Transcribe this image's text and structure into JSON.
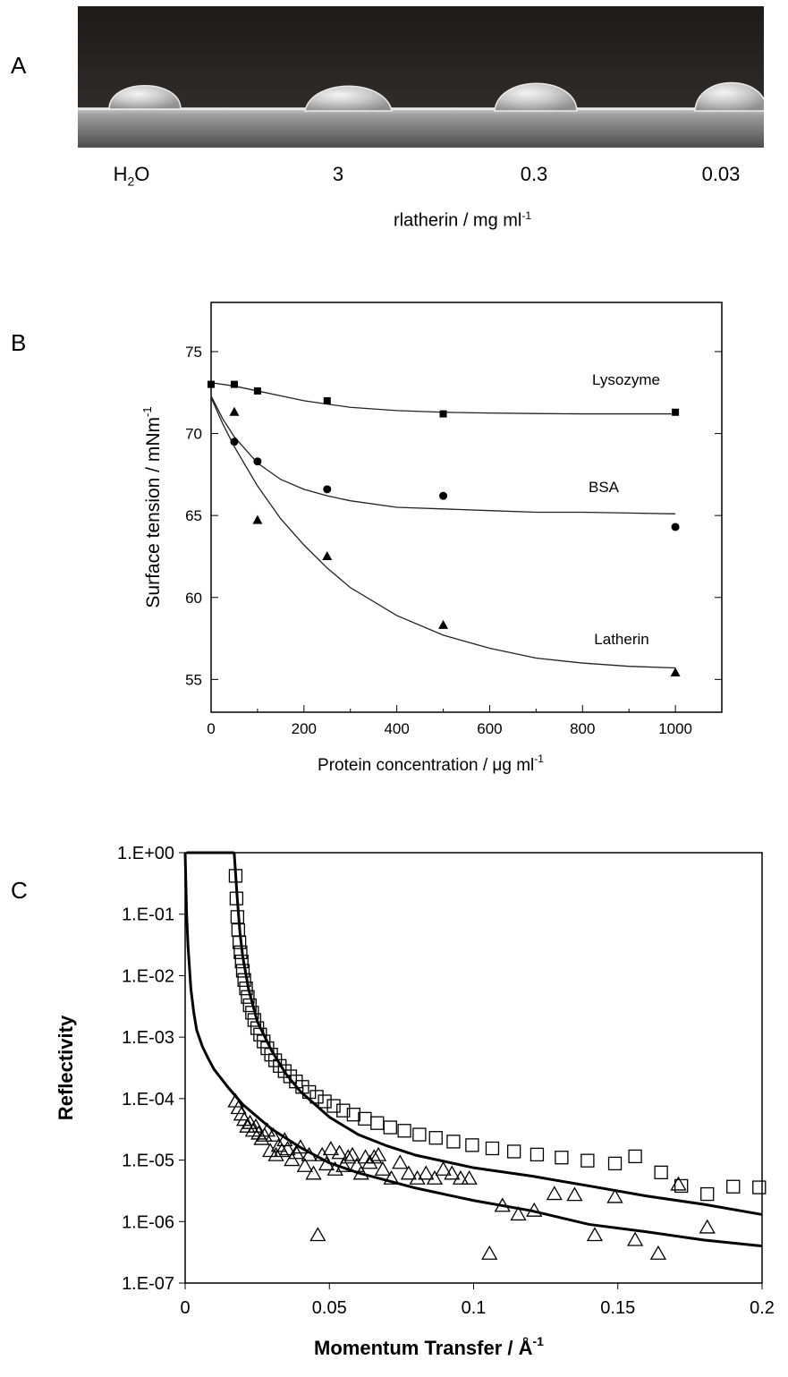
{
  "panel_a": {
    "letter": "A",
    "drops": [
      {
        "label_main": "H",
        "label_sub": "2",
        "label_tail": "O"
      },
      {
        "label_main": "3",
        "label_sub": "",
        "label_tail": ""
      },
      {
        "label_main": "0.3",
        "label_sub": "",
        "label_tail": ""
      },
      {
        "label_main": "0.03",
        "label_sub": "",
        "label_tail": ""
      }
    ],
    "axis_label": "rlatherin   /  mg ml",
    "axis_label_sup": "-1"
  },
  "panel_b": {
    "letter": "B",
    "ylabel": "Surface tension /  mNm",
    "ylabel_sup": "-1",
    "xlabel": "Protein concentration  / μg ml",
    "xlabel_sup": "-1"
  },
  "panel_c": {
    "letter": "C",
    "ylabel": "Reflectivity",
    "xlabel": "Momentum Transfer / Å",
    "xlabel_sup": "-1"
  },
  "chart_data": [
    {
      "type": "scatter",
      "title": "",
      "xlabel": "Protein concentration / μg ml-1",
      "ylabel": "Surface tension / mNm-1",
      "xlim": [
        0,
        1100
      ],
      "ylim": [
        53,
        78
      ],
      "xticks": [
        "0",
        "200",
        "400",
        "600",
        "800",
        "1000"
      ],
      "yticks": [
        "55",
        "60",
        "65",
        "70",
        "75"
      ],
      "series": [
        {
          "name": "Lysozyme",
          "marker": "square",
          "x": [
            0,
            50,
            100,
            250,
            500,
            1000
          ],
          "y": [
            73.0,
            73.0,
            72.6,
            72.0,
            71.2,
            71.3
          ],
          "fit_x": [
            0,
            50,
            100,
            150,
            200,
            250,
            300,
            400,
            500,
            600,
            700,
            800,
            900,
            1000
          ],
          "fit_y": [
            73.1,
            72.9,
            72.6,
            72.3,
            72.0,
            71.8,
            71.6,
            71.4,
            71.3,
            71.25,
            71.22,
            71.2,
            71.2,
            71.2
          ]
        },
        {
          "name": "BSA",
          "marker": "circle",
          "x": [
            50,
            100,
            250,
            500,
            1000
          ],
          "y": [
            69.5,
            68.3,
            66.6,
            66.2,
            64.3
          ],
          "fit_x": [
            0,
            25,
            50,
            100,
            150,
            200,
            250,
            300,
            400,
            500,
            600,
            700,
            800,
            900,
            1000
          ],
          "fit_y": [
            72.3,
            70.9,
            69.8,
            68.2,
            67.2,
            66.6,
            66.2,
            65.9,
            65.5,
            65.4,
            65.3,
            65.2,
            65.2,
            65.15,
            65.1
          ]
        },
        {
          "name": "Latherin",
          "marker": "triangle",
          "x": [
            50,
            100,
            250,
            500,
            1000
          ],
          "y": [
            71.3,
            64.7,
            62.5,
            58.3,
            55.4
          ],
          "fit_x": [
            0,
            25,
            50,
            100,
            150,
            200,
            250,
            300,
            400,
            500,
            600,
            700,
            800,
            900,
            1000
          ],
          "fit_y": [
            72.2,
            70.6,
            69.2,
            66.8,
            64.8,
            63.2,
            61.8,
            60.6,
            58.9,
            57.7,
            56.9,
            56.3,
            56.0,
            55.8,
            55.7
          ]
        }
      ],
      "annotations": [
        "Lysozyme",
        "BSA",
        "Latherin"
      ]
    },
    {
      "type": "scatter",
      "title": "",
      "xlabel": "Momentum Transfer / Å-1",
      "ylabel": "Reflectivity",
      "xlim": [
        0,
        0.2
      ],
      "ylim": [
        1e-07,
        1
      ],
      "yscale": "log",
      "xticks": [
        "0",
        "0.05",
        "0.1",
        "0.15",
        "0.2"
      ],
      "yticks": [
        "1.E+00",
        "1.E-01",
        "1.E-02",
        "1.E-03",
        "1.E-04",
        "1.E-05",
        "1.E-06",
        "1.E-07"
      ],
      "series": [
        {
          "marker": "open-square",
          "x": [
            0.0175,
            0.0178,
            0.0181,
            0.0184,
            0.0188,
            0.0192,
            0.0196,
            0.02,
            0.0205,
            0.0211,
            0.0217,
            0.0224,
            0.0232,
            0.024,
            0.025,
            0.026,
            0.0272,
            0.0285,
            0.0298,
            0.0312,
            0.0328,
            0.0345,
            0.0364,
            0.0384,
            0.0406,
            0.043,
            0.0456,
            0.0484,
            0.0515,
            0.0548,
            0.0584,
            0.0623,
            0.0666,
            0.0711,
            0.076,
            0.0812,
            0.0869,
            0.093,
            0.0995,
            0.1065,
            0.114,
            0.122,
            0.1305,
            0.1395,
            0.149,
            0.156,
            0.165,
            0.172,
            0.181,
            0.19,
            0.199
          ],
          "y": [
            0.42,
            0.18,
            0.09,
            0.055,
            0.035,
            0.024,
            0.017,
            0.012,
            0.0085,
            0.0062,
            0.0045,
            0.0033,
            0.0025,
            0.0019,
            0.0014,
            0.0011,
            0.00085,
            0.00066,
            0.00052,
            0.00042,
            0.00034,
            0.00028,
            0.00023,
            0.00019,
            0.000155,
            0.000128,
            0.000107,
            9e-05,
            7.6e-05,
            6.4e-05,
            5.5e-05,
            4.7e-05,
            4e-05,
            3.4e-05,
            3e-05,
            2.6e-05,
            2.3e-05,
            2e-05,
            1.75e-05,
            1.55e-05,
            1.38e-05,
            1.23e-05,
            1.1e-05,
            9.8e-06,
            8.8e-06,
            1.15e-05,
            6.3e-06,
            3.8e-06,
            2.8e-06,
            3.7e-06,
            3.6e-06
          ],
          "fit_x": [
            0.017,
            0.018,
            0.019,
            0.02,
            0.022,
            0.025,
            0.03,
            0.035,
            0.04,
            0.05,
            0.06,
            0.07,
            0.08,
            0.09,
            0.1,
            0.12,
            0.14,
            0.16,
            0.18,
            0.2
          ],
          "fit_y": [
            1,
            0.2,
            0.05,
            0.02,
            0.006,
            0.0018,
            0.0006,
            0.00025,
            0.00013,
            5e-05,
            2.6e-05,
            1.7e-05,
            1.2e-05,
            9.5e-06,
            7.5e-06,
            5.5e-06,
            3.8e-06,
            2.6e-06,
            1.9e-06,
            1.3e-06
          ]
        },
        {
          "marker": "open-triangle",
          "x": [
            0.0175,
            0.0185,
            0.0195,
            0.0205,
            0.0215,
            0.0225,
            0.0235,
            0.0245,
            0.0255,
            0.0265,
            0.0275,
            0.0285,
            0.0295,
            0.0305,
            0.0315,
            0.0325,
            0.0335,
            0.0345,
            0.0355,
            0.037,
            0.0385,
            0.04,
            0.0415,
            0.043,
            0.0445,
            0.046,
            0.0475,
            0.049,
            0.0505,
            0.052,
            0.0535,
            0.055,
            0.0565,
            0.058,
            0.0595,
            0.061,
            0.0625,
            0.064,
            0.0655,
            0.067,
            0.0685,
            0.0715,
            0.0745,
            0.0775,
            0.0805,
            0.0835,
            0.0865,
            0.0895,
            0.0925,
            0.0955,
            0.0985,
            0.1055,
            0.11,
            0.1155,
            0.121,
            0.128,
            0.135,
            0.142,
            0.149,
            0.156,
            0.164,
            0.171,
            0.181
          ],
          "y": [
            9e-05,
            7e-05,
            5.5e-05,
            4.5e-05,
            3.5e-05,
            4e-05,
            3e-05,
            3.5e-05,
            2.7e-05,
            2.2e-05,
            2.5e-05,
            3e-05,
            1.4e-05,
            2.5e-05,
            1.2e-05,
            1.7e-05,
            1.4e-05,
            2.1e-05,
            1.5e-05,
            1e-05,
            1.3e-05,
            1.6e-05,
            8e-06,
            1.2e-05,
            6e-06,
            6e-07,
            1.2e-05,
            8.5e-06,
            1.5e-05,
            7e-06,
            1.3e-05,
            8e-06,
            1.1e-05,
            1.2e-05,
            8e-06,
            6e-06,
            1.1e-05,
            9e-06,
            1.1e-05,
            1.2e-05,
            7e-06,
            5e-06,
            9e-06,
            6e-06,
            5e-06,
            6e-06,
            5e-06,
            7e-06,
            6e-06,
            5e-06,
            5e-06,
            3e-07,
            1.8e-06,
            1.3e-06,
            1.5e-06,
            2.8e-06,
            2.7e-06,
            6e-07,
            2.5e-06,
            5e-07,
            3e-07,
            4e-06,
            8e-07
          ],
          "fit_x": [
            0.0,
            0.0005,
            0.001,
            0.002,
            0.003,
            0.004,
            0.006,
            0.008,
            0.01,
            0.015,
            0.02,
            0.03,
            0.04,
            0.05,
            0.06,
            0.08,
            0.1,
            0.12,
            0.14,
            0.16,
            0.18,
            0.2
          ],
          "fit_y": [
            1,
            0.1,
            0.03,
            0.006,
            0.0025,
            0.0013,
            0.0007,
            0.00045,
            0.0003,
            0.00015,
            8e-05,
            3.2e-05,
            1.6e-05,
            9e-06,
            6.2e-06,
            3.5e-06,
            2.2e-06,
            1.5e-06,
            9e-07,
            6.8e-07,
            5e-07,
            4e-07
          ]
        }
      ]
    }
  ]
}
